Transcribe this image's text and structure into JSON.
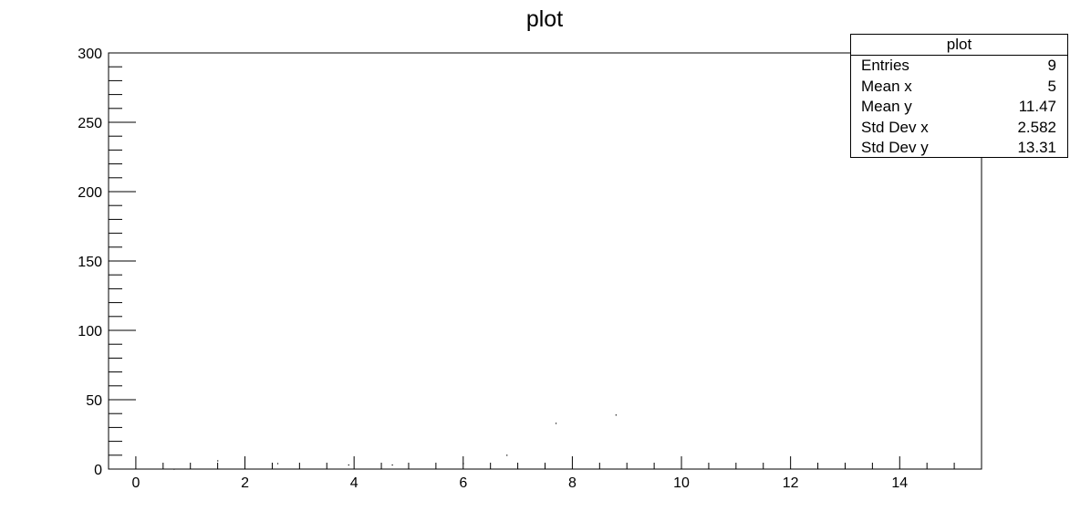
{
  "chart_data": {
    "type": "scatter",
    "title": "plot",
    "xlabel": "",
    "ylabel": "",
    "xlim": [
      -0.5,
      15.5
    ],
    "ylim": [
      0,
      300
    ],
    "x_ticks": [
      "0",
      "2",
      "4",
      "6",
      "8",
      "10",
      "12",
      "14"
    ],
    "y_ticks": [
      "0",
      "50",
      "100",
      "150",
      "200",
      "250",
      "300"
    ],
    "points": [
      {
        "x": 0.7,
        "y": 0
      },
      {
        "x": 1.5,
        "y": 6
      },
      {
        "x": 2.6,
        "y": 4
      },
      {
        "x": 3.9,
        "y": 3
      },
      {
        "x": 4.7,
        "y": 3
      },
      {
        "x": 6.0,
        "y": 4
      },
      {
        "x": 6.8,
        "y": 10
      },
      {
        "x": 7.7,
        "y": 33
      },
      {
        "x": 8.8,
        "y": 39
      }
    ],
    "grid": false,
    "legend": "top-right",
    "stats": {
      "title": "plot",
      "rows": [
        {
          "label": "Entries",
          "value": "9"
        },
        {
          "label": "Mean x",
          "value": "5"
        },
        {
          "label": "Mean y",
          "value": "11.47"
        },
        {
          "label": "Std Dev x",
          "value": "2.582"
        },
        {
          "label": "Std Dev y",
          "value": "13.31"
        }
      ]
    }
  }
}
